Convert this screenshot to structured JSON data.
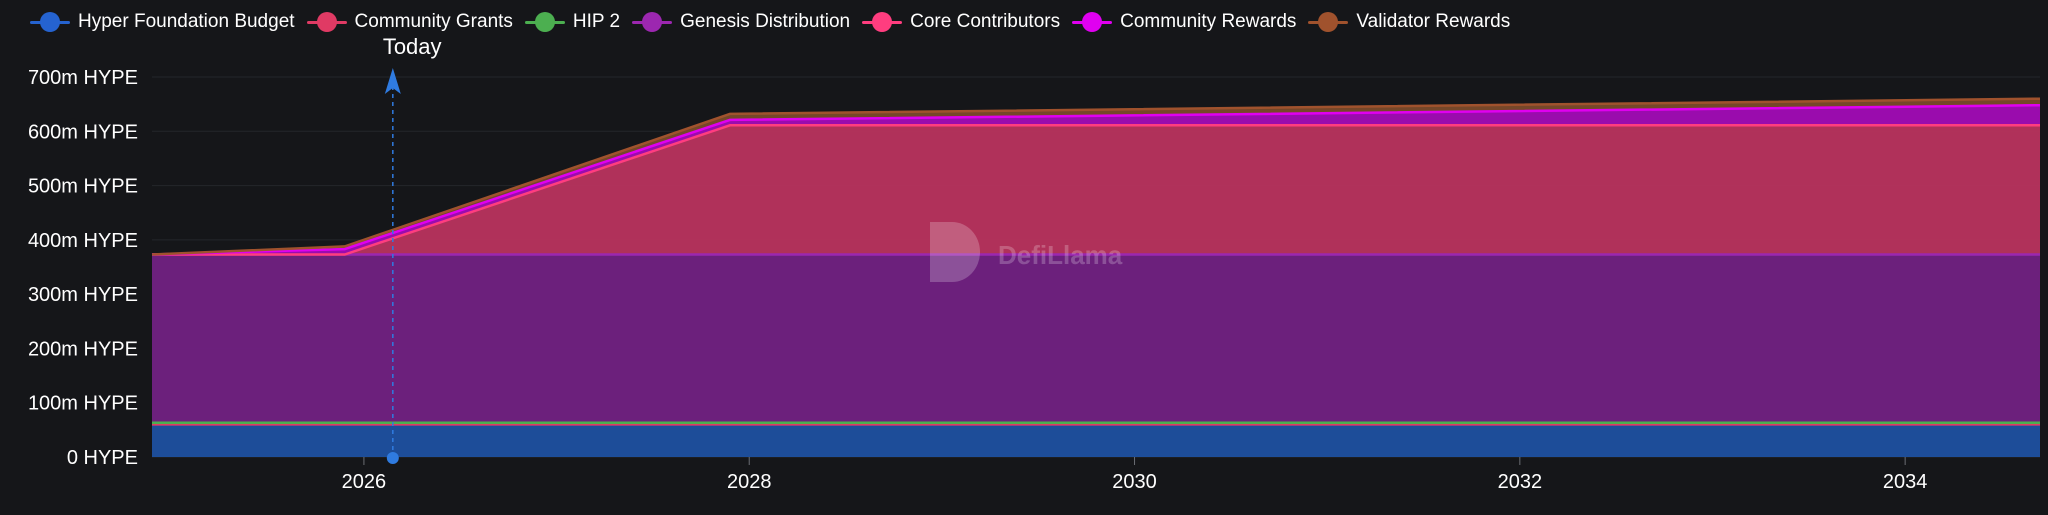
{
  "chart_data": {
    "type": "area",
    "stacked": true,
    "x_domain": [
      2024.9,
      2034.7
    ],
    "y_unit": "HYPE",
    "ylim": [
      0,
      700000000
    ],
    "y_ticks": [
      {
        "value": 0,
        "label": "0 HYPE"
      },
      {
        "value": 100000000,
        "label": "100m HYPE"
      },
      {
        "value": 200000000,
        "label": "200m HYPE"
      },
      {
        "value": 300000000,
        "label": "300m HYPE"
      },
      {
        "value": 400000000,
        "label": "400m HYPE"
      },
      {
        "value": 500000000,
        "label": "500m HYPE"
      },
      {
        "value": 600000000,
        "label": "600m HYPE"
      },
      {
        "value": 700000000,
        "label": "700m HYPE"
      }
    ],
    "x_ticks": [
      {
        "value": 2026,
        "label": "2026"
      },
      {
        "value": 2028,
        "label": "2028"
      },
      {
        "value": 2030,
        "label": "2030"
      },
      {
        "value": 2032,
        "label": "2032"
      },
      {
        "value": 2034,
        "label": "2034"
      }
    ],
    "grid": true,
    "legend_position": "top-left",
    "today": {
      "label": "Today",
      "x": 2026.15
    },
    "x": [
      2024.9,
      2025.9,
      2027.9,
      2034.7
    ],
    "series": [
      {
        "name": "Hyper Foundation Budget",
        "color": "#2563d0",
        "fill": "#1e50a0",
        "values": [
          60000000,
          60000000,
          60000000,
          60000000
        ]
      },
      {
        "name": "Community Grants",
        "color": "#e03a64",
        "fill": "#c02c55",
        "values": [
          0,
          0,
          0,
          0
        ]
      },
      {
        "name": "HIP 2",
        "color": "#4caf50",
        "fill": "#3a8a3e",
        "values": [
          3000000,
          3000000,
          3000000,
          3000000
        ]
      },
      {
        "name": "Genesis Distribution",
        "color": "#9c27b0",
        "fill": "#712182",
        "values": [
          310000000,
          310000000,
          310000000,
          310000000
        ]
      },
      {
        "name": "Core Contributors",
        "color": "#ff3d7f",
        "fill": "#b8335e",
        "values": [
          0,
          0,
          238000000,
          238000000
        ]
      },
      {
        "name": "Community Rewards",
        "color": "#e000f0",
        "fill": "#a10cb5",
        "values": [
          0,
          10000000,
          10000000,
          37000000
        ]
      },
      {
        "name": "Validator Rewards",
        "color": "#a0522d",
        "fill": "#7a4a2a",
        "values": [
          0,
          5000000,
          11000000,
          12000000
        ]
      }
    ],
    "watermark": "DefiLlama"
  }
}
